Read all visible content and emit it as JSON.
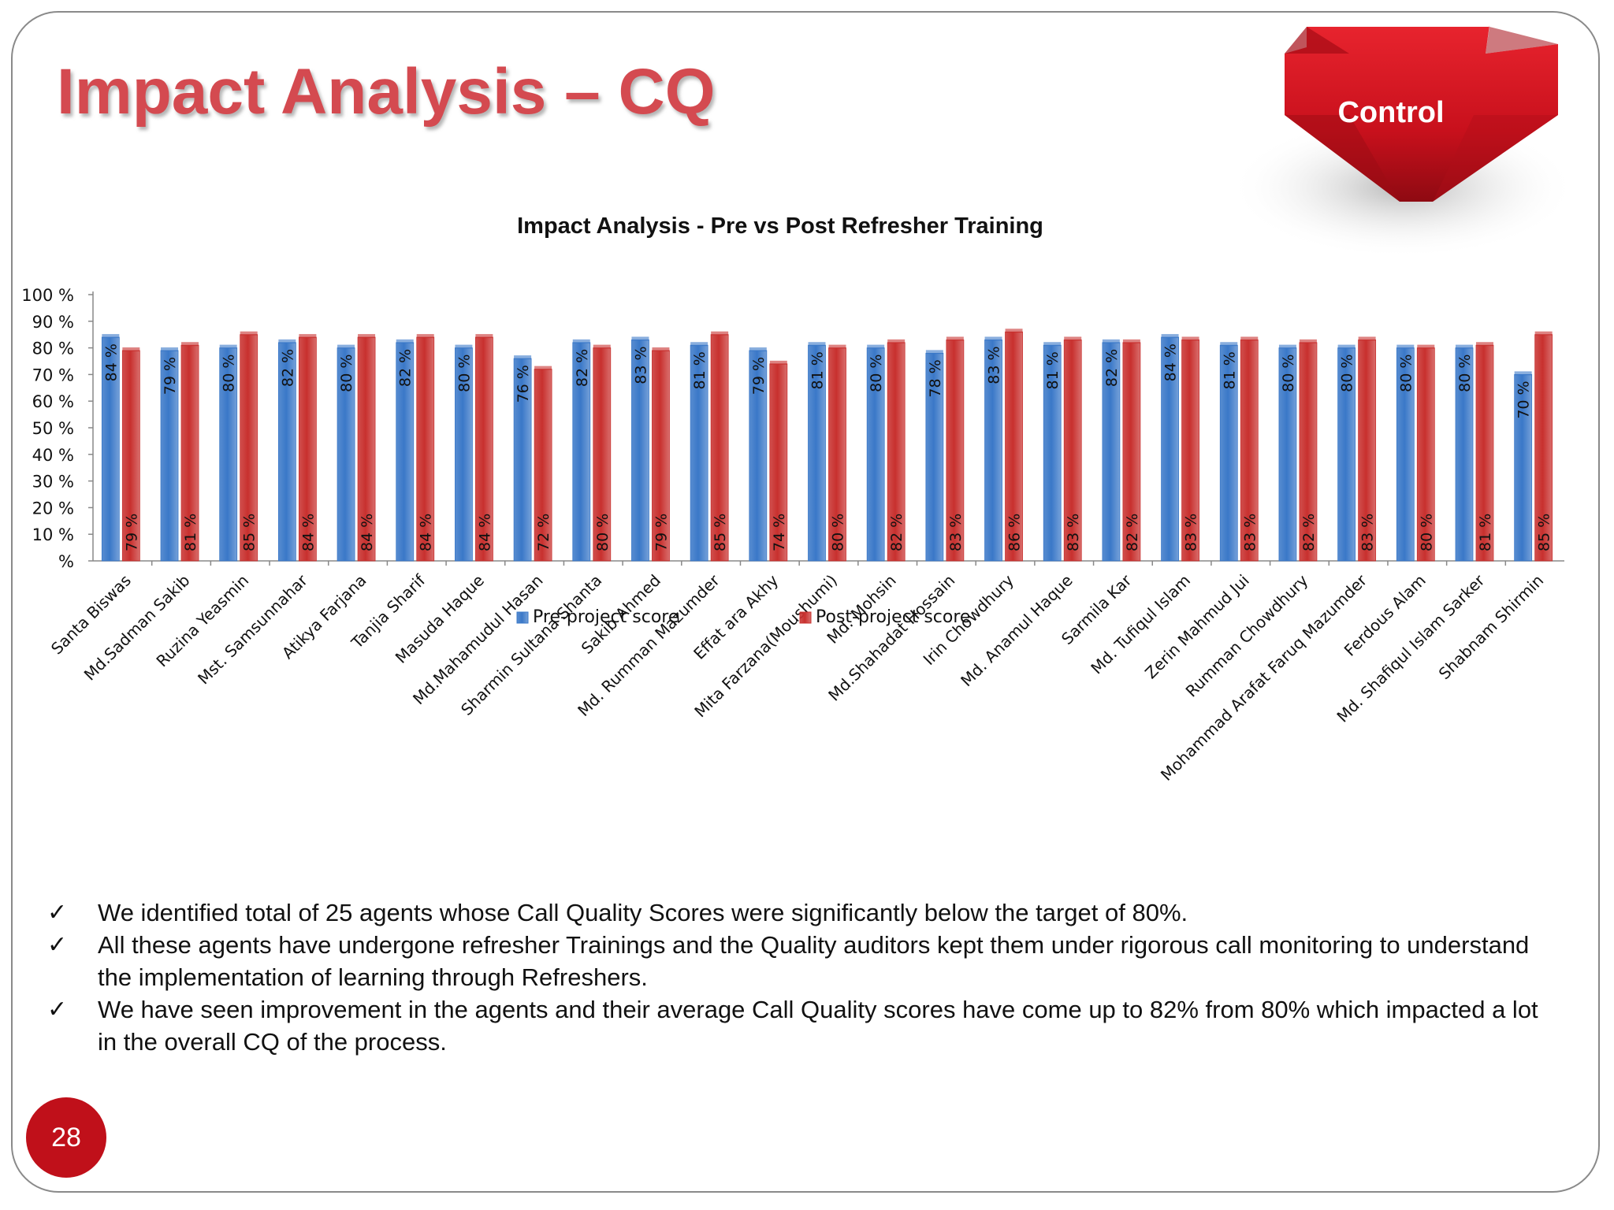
{
  "slide": {
    "title": "Impact Analysis – CQ",
    "badge_label": "Control",
    "page_number": "28",
    "bullets": [
      "We identified total of 25 agents whose Call Quality Scores were significantly below the target of 80%.",
      "All these agents have undergone refresher Trainings and the Quality auditors kept them under rigorous call monitoring to understand the implementation of learning through Refreshers.",
      "We have seen improvement in the agents and their average Call Quality scores have come up to 82% from 80% which impacted a lot in the overall CQ of the process."
    ],
    "check_glyph": "✓",
    "colors": {
      "title": "#d44a50",
      "badge": "#c8101c",
      "page_circle": "#c0101a"
    }
  },
  "chart_data": {
    "type": "bar",
    "title": "Impact Analysis - Pre vs Post Refresher Training",
    "ylim": [
      0,
      100
    ],
    "yticks": [
      "%",
      "10 %",
      "20 %",
      "30 %",
      "40 %",
      "50 %",
      "60 %",
      "70 %",
      "80 %",
      "90 %",
      "100 %"
    ],
    "legend_position": "bottom",
    "categories": [
      "Santa Biswas",
      "Md.Sadman Sakib",
      "Ruzina Yeasmin",
      "Mst. Samsunnahar",
      "Atikya Farjana",
      "Tanjia Sharif",
      "Masuda Haque",
      "Md.Mahamudul Hasan",
      "Sharmin Sultana Shanta",
      "Sakib Ahmed",
      "Md. Rumman Mazumder",
      "Effat ara Akhy",
      "Mita Farzana(Moushumi)",
      "Md. Mohsin",
      "Md.Shahadat Hossain",
      "Irin Chowdhury",
      "Md. Anamul Haque",
      "Sarmila Kar",
      "Md. Tufiqul Islam",
      "Zerin Mahmud Jui",
      "Rumman Chowdhury",
      "Mohammad Arafat Faruq Mazumder",
      "Ferdous Alam",
      "Md. Shafiqul Islam Sarker",
      "Shabnam Shirmin"
    ],
    "series": [
      {
        "name": "Pre-project score",
        "color": "#3a78c8",
        "values": [
          84,
          79,
          80,
          82,
          80,
          82,
          80,
          76,
          82,
          83,
          81,
          79,
          81,
          80,
          78,
          83,
          81,
          82,
          84,
          81,
          80,
          80,
          80,
          80,
          70
        ],
        "labels": [
          "84 %",
          "79 %",
          "80 %",
          "82 %",
          "80 %",
          "82 %",
          "80 %",
          "76 %",
          "82 %",
          "83 %",
          "81 %",
          "79 %",
          "81 %",
          "80 %",
          "78 %",
          "83 %",
          "81 %",
          "82 %",
          "84 %",
          "81 %",
          "80 %",
          "80 %",
          "80 %",
          "80 %",
          "70 %"
        ]
      },
      {
        "name": "Post-project score",
        "color": "#c8302e",
        "values": [
          79,
          81,
          85,
          84,
          84,
          84,
          84,
          72,
          80,
          79,
          85,
          74,
          80,
          82,
          83,
          86,
          83,
          82,
          83,
          83,
          82,
          83,
          80,
          81,
          85
        ],
        "labels": [
          "79 %",
          "81 %",
          "85 %",
          "84 %",
          "84 %",
          "84 %",
          "84 %",
          "72 %",
          "80 %",
          "79 %",
          "85 %",
          "74 %",
          "80 %",
          "82 %",
          "83 %",
          "86 %",
          "83 %",
          "82 %",
          "83 %",
          "83 %",
          "82 %",
          "83 %",
          "80 %",
          "81 %",
          "85 %"
        ]
      }
    ]
  }
}
